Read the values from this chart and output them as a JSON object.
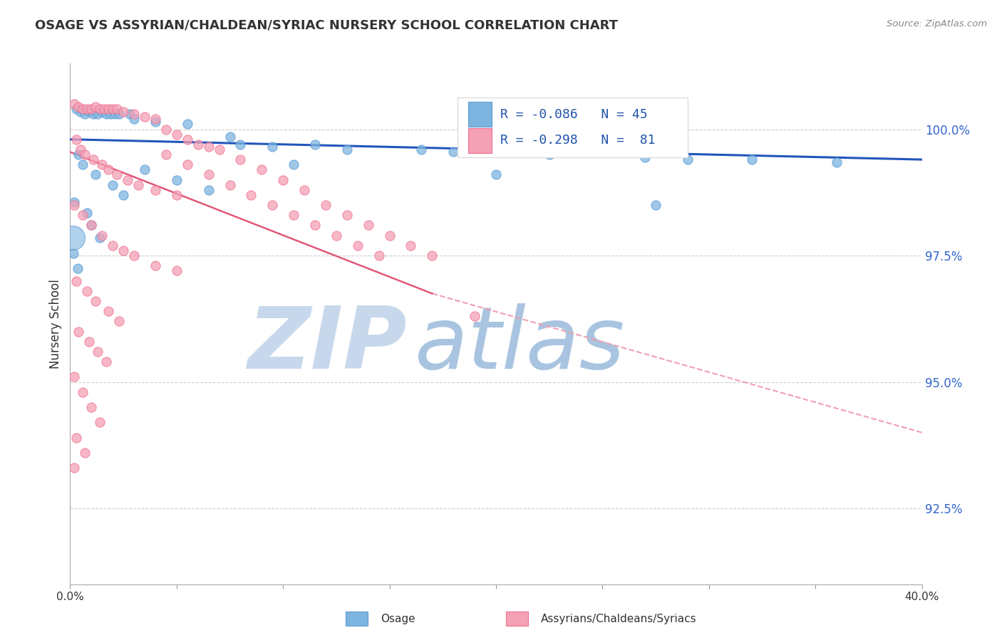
{
  "title": "OSAGE VS ASSYRIAN/CHALDEAN/SYRIAC NURSERY SCHOOL CORRELATION CHART",
  "source_text": "Source: ZipAtlas.com",
  "ylabel": "Nursery School",
  "xmin": 0.0,
  "xmax": 40.0,
  "ymin": 91.0,
  "ymax": 101.3,
  "yticks": [
    100.0,
    97.5,
    95.0,
    92.5
  ],
  "xticks": [
    0.0,
    5.0,
    10.0,
    15.0,
    20.0,
    25.0,
    30.0,
    35.0,
    40.0
  ],
  "legend_r1": "R = -0.086",
  "legend_n1": "N = 45",
  "legend_r2": "R = -0.298",
  "legend_n2": "N =  81",
  "blue_color": "#7eb5e0",
  "pink_color": "#f4a0b5",
  "blue_edge_color": "#5b9bd5",
  "pink_edge_color": "#f07090",
  "blue_line_color": "#2255bb",
  "pink_line_color": "#e05878",
  "pink_dash_color": "#f0a0b0",
  "watermark_zip": "ZIP",
  "watermark_atlas": "atlas",
  "watermark_color": "#c8d8ec",
  "blue_dots": [
    [
      0.3,
      100.4
    ],
    [
      0.5,
      100.35
    ],
    [
      0.7,
      100.3
    ],
    [
      0.9,
      100.35
    ],
    [
      1.1,
      100.3
    ],
    [
      1.3,
      100.3
    ],
    [
      1.5,
      100.35
    ],
    [
      1.7,
      100.3
    ],
    [
      1.9,
      100.3
    ],
    [
      2.1,
      100.3
    ],
    [
      2.3,
      100.3
    ],
    [
      2.8,
      100.3
    ],
    [
      3.0,
      100.2
    ],
    [
      4.0,
      100.15
    ],
    [
      5.5,
      100.1
    ],
    [
      7.5,
      99.85
    ],
    [
      8.0,
      99.7
    ],
    [
      9.5,
      99.65
    ],
    [
      11.5,
      99.7
    ],
    [
      13.0,
      99.6
    ],
    [
      16.5,
      99.6
    ],
    [
      18.0,
      99.55
    ],
    [
      21.0,
      99.55
    ],
    [
      22.5,
      99.5
    ],
    [
      27.0,
      99.45
    ],
    [
      29.0,
      99.4
    ],
    [
      32.0,
      99.4
    ],
    [
      36.0,
      99.35
    ],
    [
      0.4,
      99.5
    ],
    [
      0.6,
      99.3
    ],
    [
      1.2,
      99.1
    ],
    [
      2.0,
      98.9
    ],
    [
      2.5,
      98.7
    ],
    [
      0.2,
      98.55
    ],
    [
      0.8,
      98.35
    ],
    [
      1.0,
      98.1
    ],
    [
      1.4,
      97.85
    ],
    [
      0.15,
      97.55
    ],
    [
      0.35,
      97.25
    ],
    [
      27.5,
      98.5
    ],
    [
      3.5,
      99.2
    ],
    [
      5.0,
      99.0
    ],
    [
      6.5,
      98.8
    ],
    [
      10.5,
      99.3
    ],
    [
      20.0,
      99.1
    ]
  ],
  "blue_dot_large": [
    0.12,
    97.85
  ],
  "pink_dots": [
    [
      0.2,
      100.5
    ],
    [
      0.4,
      100.45
    ],
    [
      0.6,
      100.4
    ],
    [
      0.8,
      100.4
    ],
    [
      1.0,
      100.4
    ],
    [
      1.2,
      100.45
    ],
    [
      1.4,
      100.4
    ],
    [
      1.6,
      100.4
    ],
    [
      1.8,
      100.4
    ],
    [
      2.0,
      100.4
    ],
    [
      2.2,
      100.4
    ],
    [
      2.5,
      100.35
    ],
    [
      3.0,
      100.3
    ],
    [
      3.5,
      100.25
    ],
    [
      4.0,
      100.2
    ],
    [
      4.5,
      100.0
    ],
    [
      5.0,
      99.9
    ],
    [
      5.5,
      99.8
    ],
    [
      6.0,
      99.7
    ],
    [
      6.5,
      99.65
    ],
    [
      0.3,
      99.8
    ],
    [
      0.5,
      99.6
    ],
    [
      0.7,
      99.5
    ],
    [
      1.1,
      99.4
    ],
    [
      1.5,
      99.3
    ],
    [
      1.8,
      99.2
    ],
    [
      2.2,
      99.1
    ],
    [
      2.7,
      99.0
    ],
    [
      3.2,
      98.9
    ],
    [
      4.0,
      98.8
    ],
    [
      5.0,
      98.7
    ],
    [
      0.2,
      98.5
    ],
    [
      0.6,
      98.3
    ],
    [
      1.0,
      98.1
    ],
    [
      1.5,
      97.9
    ],
    [
      2.0,
      97.7
    ],
    [
      2.5,
      97.6
    ],
    [
      3.0,
      97.5
    ],
    [
      4.0,
      97.3
    ],
    [
      5.0,
      97.2
    ],
    [
      0.3,
      97.0
    ],
    [
      0.8,
      96.8
    ],
    [
      1.2,
      96.6
    ],
    [
      1.8,
      96.4
    ],
    [
      2.3,
      96.2
    ],
    [
      0.4,
      96.0
    ],
    [
      0.9,
      95.8
    ],
    [
      1.3,
      95.6
    ],
    [
      1.7,
      95.4
    ],
    [
      0.2,
      95.1
    ],
    [
      0.6,
      94.8
    ],
    [
      1.0,
      94.5
    ],
    [
      1.4,
      94.2
    ],
    [
      0.3,
      93.9
    ],
    [
      0.7,
      93.6
    ],
    [
      0.2,
      93.3
    ],
    [
      7.0,
      99.6
    ],
    [
      8.0,
      99.4
    ],
    [
      9.0,
      99.2
    ],
    [
      10.0,
      99.0
    ],
    [
      11.0,
      98.8
    ],
    [
      12.0,
      98.5
    ],
    [
      13.0,
      98.3
    ],
    [
      14.0,
      98.1
    ],
    [
      15.0,
      97.9
    ],
    [
      16.0,
      97.7
    ],
    [
      4.5,
      99.5
    ],
    [
      5.5,
      99.3
    ],
    [
      6.5,
      99.1
    ],
    [
      7.5,
      98.9
    ],
    [
      8.5,
      98.7
    ],
    [
      9.5,
      98.5
    ],
    [
      10.5,
      98.3
    ],
    [
      11.5,
      98.1
    ],
    [
      12.5,
      97.9
    ],
    [
      13.5,
      97.7
    ],
    [
      14.5,
      97.5
    ],
    [
      17.0,
      97.5
    ],
    [
      19.0,
      96.3
    ]
  ],
  "blue_line": [
    0.0,
    40.0,
    99.8,
    99.4
  ],
  "pink_solid_line": [
    0.0,
    17.0,
    99.55,
    96.75
  ],
  "pink_dash_line": [
    17.0,
    40.0,
    96.75,
    94.0
  ]
}
